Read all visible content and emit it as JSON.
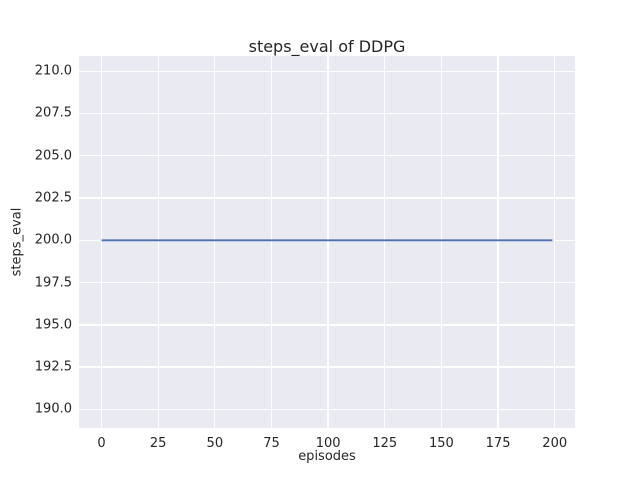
{
  "chart_data": {
    "type": "line",
    "title": "steps_eval of DDPG",
    "xlabel": "episodes",
    "ylabel": "steps_eval",
    "x_ticks": [
      0,
      25,
      50,
      75,
      100,
      125,
      150,
      175,
      200
    ],
    "x_tick_labels": [
      "0",
      "25",
      "50",
      "75",
      "100",
      "125",
      "150",
      "175",
      "200"
    ],
    "y_ticks": [
      190.0,
      192.5,
      195.0,
      197.5,
      200.0,
      202.5,
      205.0,
      207.5,
      210.0
    ],
    "y_tick_labels": [
      "190.0",
      "192.5",
      "195.0",
      "197.5",
      "200.0",
      "202.5",
      "205.0",
      "207.5",
      "210.0"
    ],
    "xlim": [
      -9.95,
      208.95
    ],
    "ylim": [
      188.9,
      210.9
    ],
    "grid": true,
    "legend": null,
    "plot_background": "#eaeaf2",
    "grid_color": "#ffffff",
    "text_color": "#262626",
    "series": [
      {
        "name": "DDPG",
        "color": "#4c72b0",
        "points": [
          [
            0,
            200.0
          ],
          [
            199,
            200.0
          ]
        ]
      }
    ]
  }
}
